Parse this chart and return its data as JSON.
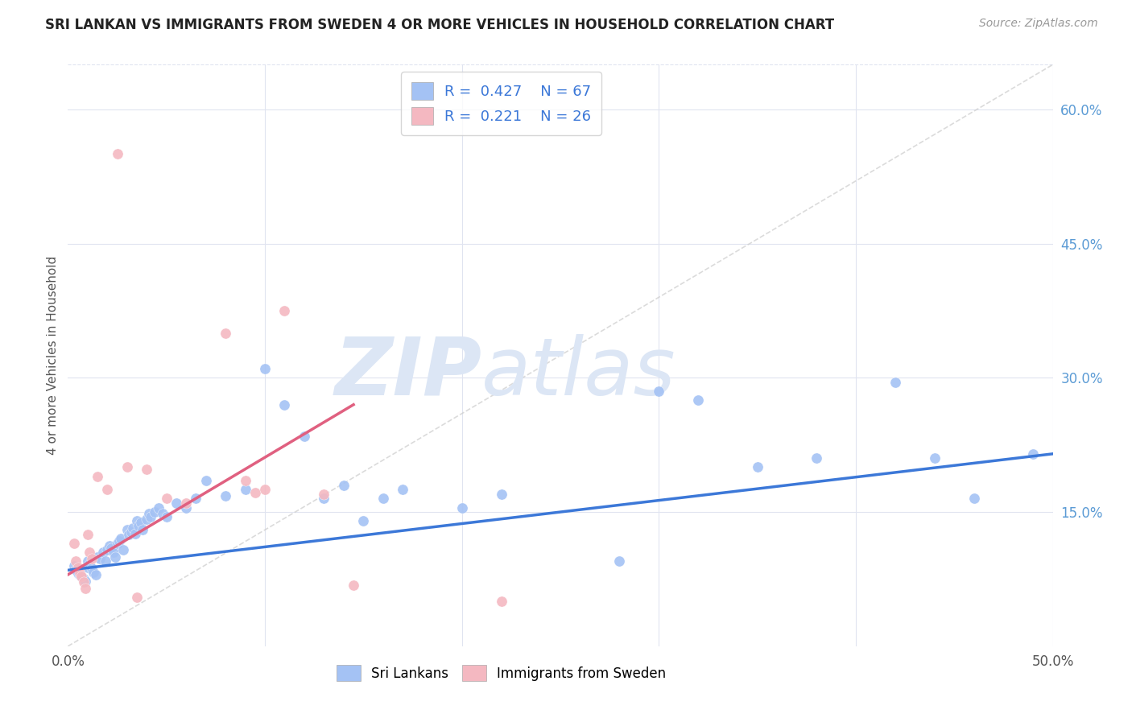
{
  "title": "SRI LANKAN VS IMMIGRANTS FROM SWEDEN 4 OR MORE VEHICLES IN HOUSEHOLD CORRELATION CHART",
  "source": "Source: ZipAtlas.com",
  "ylabel": "4 or more Vehicles in Household",
  "xlim": [
    0.0,
    0.5
  ],
  "ylim": [
    0.0,
    0.65
  ],
  "blue_color": "#a4c2f4",
  "pink_color": "#f4b8c1",
  "blue_line_color": "#3c78d8",
  "pink_line_color": "#e06080",
  "trendline_dashed_color": "#cccccc",
  "legend_label1": "Sri Lankans",
  "legend_label2": "Immigrants from Sweden",
  "watermark_zip": "ZIP",
  "watermark_atlas": "atlas",
  "watermark_color": "#dce6f5",
  "background_color": "#ffffff",
  "grid_color": "#e0e4f0",
  "title_color": "#222222",
  "source_color": "#999999",
  "blue_scatter_x": [
    0.003,
    0.004,
    0.005,
    0.006,
    0.007,
    0.008,
    0.009,
    0.01,
    0.01,
    0.011,
    0.012,
    0.013,
    0.014,
    0.015,
    0.016,
    0.018,
    0.019,
    0.02,
    0.021,
    0.022,
    0.023,
    0.024,
    0.025,
    0.026,
    0.027,
    0.028,
    0.03,
    0.031,
    0.032,
    0.033,
    0.034,
    0.035,
    0.036,
    0.037,
    0.038,
    0.04,
    0.041,
    0.042,
    0.044,
    0.046,
    0.048,
    0.05,
    0.055,
    0.06,
    0.065,
    0.07,
    0.08,
    0.09,
    0.1,
    0.11,
    0.12,
    0.13,
    0.14,
    0.15,
    0.16,
    0.17,
    0.2,
    0.22,
    0.28,
    0.3,
    0.32,
    0.35,
    0.38,
    0.42,
    0.44,
    0.46,
    0.49
  ],
  "blue_scatter_y": [
    0.09,
    0.085,
    0.082,
    0.08,
    0.078,
    0.075,
    0.073,
    0.095,
    0.088,
    0.092,
    0.087,
    0.083,
    0.08,
    0.1,
    0.098,
    0.105,
    0.095,
    0.108,
    0.112,
    0.11,
    0.105,
    0.1,
    0.115,
    0.118,
    0.12,
    0.108,
    0.13,
    0.125,
    0.128,
    0.132,
    0.126,
    0.14,
    0.135,
    0.138,
    0.13,
    0.142,
    0.148,
    0.145,
    0.15,
    0.155,
    0.148,
    0.145,
    0.16,
    0.155,
    0.165,
    0.185,
    0.168,
    0.175,
    0.31,
    0.27,
    0.235,
    0.165,
    0.18,
    0.14,
    0.165,
    0.175,
    0.155,
    0.17,
    0.095,
    0.285,
    0.275,
    0.2,
    0.21,
    0.295,
    0.21,
    0.165,
    0.215
  ],
  "pink_scatter_x": [
    0.003,
    0.004,
    0.005,
    0.006,
    0.007,
    0.008,
    0.009,
    0.01,
    0.011,
    0.012,
    0.015,
    0.02,
    0.025,
    0.03,
    0.035,
    0.04,
    0.05,
    0.06,
    0.08,
    0.09,
    0.095,
    0.1,
    0.11,
    0.13,
    0.145,
    0.22
  ],
  "pink_scatter_y": [
    0.115,
    0.095,
    0.088,
    0.082,
    0.078,
    0.072,
    0.065,
    0.125,
    0.105,
    0.098,
    0.19,
    0.175,
    0.55,
    0.2,
    0.055,
    0.198,
    0.165,
    0.16,
    0.35,
    0.185,
    0.172,
    0.175,
    0.375,
    0.17,
    0.068,
    0.05
  ],
  "blue_trendline_x": [
    0.0,
    0.5
  ],
  "blue_trendline_y": [
    0.085,
    0.215
  ],
  "pink_trendline_x": [
    0.0,
    0.145
  ],
  "pink_trendline_y": [
    0.08,
    0.27
  ],
  "diag_line_x": [
    0.0,
    0.5
  ],
  "diag_line_y": [
    0.0,
    0.65
  ]
}
